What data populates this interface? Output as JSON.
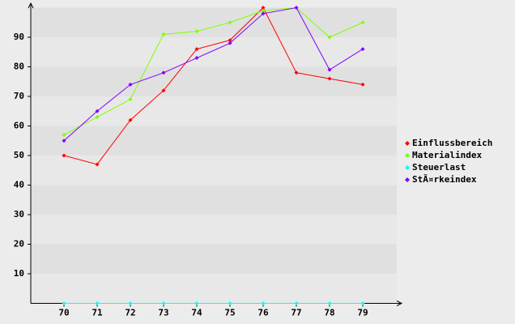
{
  "chart_data": {
    "type": "line",
    "categories": [
      "70",
      "71",
      "72",
      "73",
      "74",
      "75",
      "76",
      "77",
      "78",
      "79"
    ],
    "series": [
      {
        "name": "Einflussbereich",
        "color": "#ff0000",
        "values": [
          50,
          47,
          62,
          72,
          86,
          89,
          100,
          78,
          76,
          74
        ]
      },
      {
        "name": "Materialindex",
        "color": "#80ff00",
        "values": [
          57,
          63,
          69,
          91,
          92,
          95,
          99,
          100,
          90,
          95
        ]
      },
      {
        "name": "Steuerlast",
        "color": "#00ffff",
        "values": [
          0,
          0,
          0,
          0,
          0,
          0,
          0,
          0,
          0,
          0
        ]
      },
      {
        "name": "StÃ¤rkeindex",
        "color": "#8000ff",
        "values": [
          55,
          65,
          74,
          78,
          83,
          88,
          98,
          100,
          79,
          86
        ]
      }
    ],
    "ylim": [
      0,
      100
    ],
    "yticks": [
      10,
      20,
      30,
      40,
      50,
      60,
      70,
      80,
      90
    ],
    "grid": true,
    "legend": "right"
  }
}
